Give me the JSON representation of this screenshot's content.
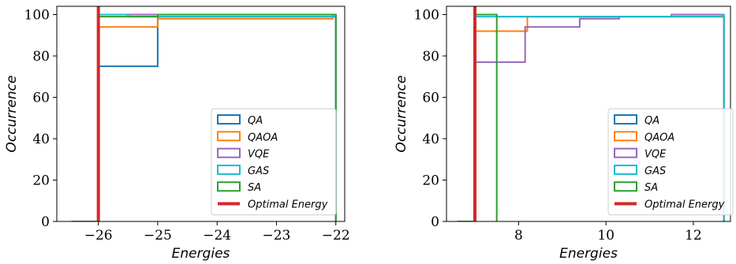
{
  "colors": {
    "QA": "#1f77b4",
    "QAOA": "#ff7f0e",
    "VQE": "#9467bd",
    "GAS": "#17becf",
    "SA": "#2ca02c",
    "optimal": "#d62728"
  },
  "chart_data": [
    {
      "type": "step",
      "xlabel": "Energies",
      "ylabel": "Occurrence",
      "xlim": [
        -26.7,
        -21.85
      ],
      "ylim": [
        0,
        104
      ],
      "xticks": [
        -26,
        -25,
        -24,
        -23,
        -22
      ],
      "xtick_labels": [
        "−26",
        "−25",
        "−24",
        "−23",
        "−22"
      ],
      "yticks": [
        0,
        20,
        40,
        60,
        80,
        100
      ],
      "ytick_labels": [
        "0",
        "20",
        "40",
        "60",
        "80",
        "100"
      ],
      "legend_position": "lower-right",
      "legend": [
        "QA",
        "QAOA",
        "VQE",
        "GAS",
        "SA",
        "Optimal Energy"
      ],
      "optimal_energy": -26,
      "series": [
        {
          "name": "QA",
          "x": [
            -26.45,
            -26,
            -26,
            -25,
            -25,
            -22,
            -22
          ],
          "y": [
            0,
            0,
            75,
            75,
            99,
            99,
            0
          ]
        },
        {
          "name": "QAOA",
          "x": [
            -26.45,
            -26,
            -26,
            -25,
            -25,
            -22.05,
            -22.05,
            -22,
            -22
          ],
          "y": [
            0,
            0,
            94,
            94,
            98,
            98,
            100,
            100,
            0
          ]
        },
        {
          "name": "VQE",
          "x": [
            -26.45,
            -26,
            -26,
            -22,
            -22
          ],
          "y": [
            0,
            0,
            100,
            100,
            0
          ]
        },
        {
          "name": "GAS",
          "x": [
            -26.45,
            -26,
            -26,
            -25.5,
            -25.5,
            -22,
            -22
          ],
          "y": [
            0,
            0,
            100,
            100,
            99,
            99,
            0
          ]
        },
        {
          "name": "SA",
          "x": [
            -26.45,
            -26,
            -26,
            -25,
            -25,
            -22,
            -22
          ],
          "y": [
            0,
            0,
            99,
            99,
            100,
            100,
            0
          ]
        }
      ]
    },
    {
      "type": "step",
      "xlabel": "Energies",
      "ylabel": "Occurrence",
      "xlim": [
        6.35,
        12.85
      ],
      "ylim": [
        0,
        104
      ],
      "xticks": [
        8,
        10,
        12
      ],
      "xtick_labels": [
        "8",
        "10",
        "12"
      ],
      "yticks": [
        0,
        20,
        40,
        60,
        80,
        100
      ],
      "ytick_labels": [
        "0",
        "20",
        "40",
        "60",
        "80",
        "100"
      ],
      "legend_position": "lower-right",
      "legend": [
        "QA",
        "QAOA",
        "VQE",
        "GAS",
        "SA",
        "Optimal Energy"
      ],
      "optimal_energy": 7.0,
      "series": [
        {
          "name": "QA",
          "x": [
            6.6,
            7.0,
            7.0,
            7.5,
            7.5,
            12.7,
            12.7
          ],
          "y": [
            0,
            0,
            100,
            100,
            99,
            99,
            0
          ]
        },
        {
          "name": "QAOA",
          "x": [
            6.6,
            7.0,
            7.0,
            8.2,
            8.2,
            9.4,
            9.4,
            12.7,
            12.7
          ],
          "y": [
            0,
            0,
            92,
            92,
            99,
            99,
            99,
            99,
            0
          ]
        },
        {
          "name": "VQE",
          "x": [
            6.6,
            7.0,
            7.0,
            8.15,
            8.15,
            9.4,
            9.4,
            10.3,
            10.3,
            11.5,
            11.5,
            12.7,
            12.7
          ],
          "y": [
            0,
            0,
            77,
            77,
            94,
            94,
            98,
            98,
            99,
            99,
            100,
            100,
            0
          ]
        },
        {
          "name": "GAS",
          "x": [
            6.6,
            7.0,
            7.0,
            12.65,
            12.65,
            12.7,
            12.7
          ],
          "y": [
            0,
            0,
            99,
            99,
            100,
            100,
            0
          ]
        },
        {
          "name": "SA",
          "x": [
            6.6,
            7.0,
            7.0,
            7.5,
            7.5
          ],
          "y": [
            0,
            0,
            100,
            100,
            0
          ]
        }
      ]
    }
  ]
}
